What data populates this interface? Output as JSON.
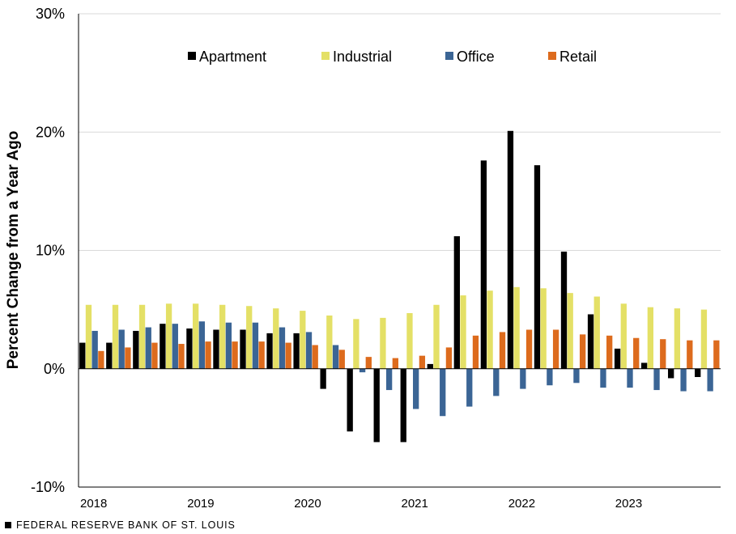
{
  "chart_data": {
    "type": "bar",
    "title": "",
    "ylabel": "Percent Change from a Year Ago",
    "xlabel": "",
    "ylim": [
      -10,
      30
    ],
    "y_ticks": [
      -10,
      0,
      10,
      20,
      30
    ],
    "y_tick_labels": [
      "-10%",
      "0%",
      "10%",
      "20%",
      "30%"
    ],
    "year_labels": [
      "2018",
      "2019",
      "2020",
      "2021",
      "2022",
      "2023"
    ],
    "categories": [
      "2018Q1",
      "2018Q2",
      "2018Q3",
      "2018Q4",
      "2019Q1",
      "2019Q2",
      "2019Q3",
      "2019Q4",
      "2020Q1",
      "2020Q2",
      "2020Q3",
      "2020Q4",
      "2021Q1",
      "2021Q2",
      "2021Q3",
      "2021Q4",
      "2022Q1",
      "2022Q2",
      "2022Q3",
      "2022Q4",
      "2023Q1",
      "2023Q2",
      "2023Q3",
      "2023Q4"
    ],
    "legend_position": "top",
    "series": [
      {
        "name": "Apartment",
        "color": "#000000",
        "values": [
          2.2,
          2.2,
          3.2,
          3.8,
          3.4,
          3.3,
          3.3,
          3.0,
          3.0,
          -1.7,
          -5.3,
          -6.2,
          -6.2,
          0.4,
          11.2,
          17.6,
          20.1,
          17.2,
          9.9,
          4.6,
          1.7,
          0.5,
          -0.8,
          -0.7
        ]
      },
      {
        "name": "Industrial",
        "color": "#e4e066",
        "values": [
          5.4,
          5.4,
          5.4,
          5.5,
          5.5,
          5.4,
          5.3,
          5.1,
          4.9,
          4.5,
          4.2,
          4.3,
          4.7,
          5.4,
          6.2,
          6.6,
          6.9,
          6.8,
          6.4,
          6.1,
          5.5,
          5.2,
          5.1,
          5.0
        ]
      },
      {
        "name": "Office",
        "color": "#3b6595",
        "values": [
          3.2,
          3.3,
          3.5,
          3.8,
          4.0,
          3.9,
          3.9,
          3.5,
          3.1,
          2.0,
          -0.3,
          -1.8,
          -3.4,
          -4.0,
          -3.2,
          -2.3,
          -1.7,
          -1.4,
          -1.2,
          -1.6,
          -1.6,
          -1.8,
          -1.9,
          -1.9
        ]
      },
      {
        "name": "Retail",
        "color": "#dd6b1d",
        "values": [
          1.5,
          1.8,
          2.2,
          2.1,
          2.3,
          2.3,
          2.3,
          2.2,
          2.0,
          1.6,
          1.0,
          0.9,
          1.1,
          1.8,
          2.8,
          3.1,
          3.3,
          3.3,
          2.9,
          2.8,
          2.6,
          2.5,
          2.4,
          2.4
        ]
      }
    ]
  },
  "footer": {
    "source_label": "FEDERAL RESERVE BANK OF ST. LOUIS"
  }
}
